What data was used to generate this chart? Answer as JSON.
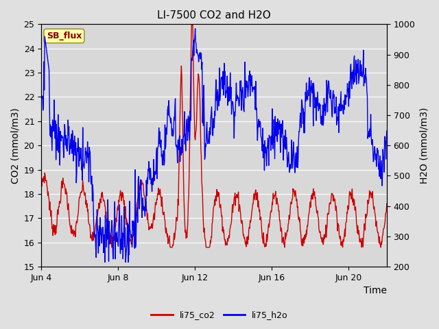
{
  "title": "LI-7500 CO2 and H2O",
  "xlabel": "Time",
  "ylabel_left": "CO2 (mmol/m3)",
  "ylabel_right": "H2O (mmol/m3)",
  "ylim_left": [
    15.0,
    25.0
  ],
  "ylim_right": [
    200,
    1000
  ],
  "yticks_left": [
    15.0,
    16.0,
    17.0,
    18.0,
    19.0,
    20.0,
    21.0,
    22.0,
    23.0,
    24.0,
    25.0
  ],
  "yticks_right": [
    200,
    300,
    400,
    500,
    600,
    700,
    800,
    900,
    1000
  ],
  "xtick_positions": [
    0,
    4,
    8,
    12,
    16
  ],
  "xtick_labels": [
    "Jun 4",
    "Jun 8",
    "Jun 12",
    "Jun 16",
    "Jun 20"
  ],
  "color_co2": "#cc0000",
  "color_h2o": "#0000ee",
  "legend_label_co2": "li75_co2",
  "legend_label_h2o": "li75_h2o",
  "badge_text": "SB_flux",
  "badge_bg": "#ffffaa",
  "badge_border": "#999944",
  "badge_text_color": "#880000",
  "fig_bg_color": "#e0e0e0",
  "plot_bg_color": "#d8d8d8",
  "grid_color": "#ffffff",
  "title_fontsize": 11,
  "axis_label_fontsize": 10,
  "tick_fontsize": 9,
  "legend_fontsize": 9,
  "line_width": 1.0,
  "xlim": [
    0,
    18
  ]
}
